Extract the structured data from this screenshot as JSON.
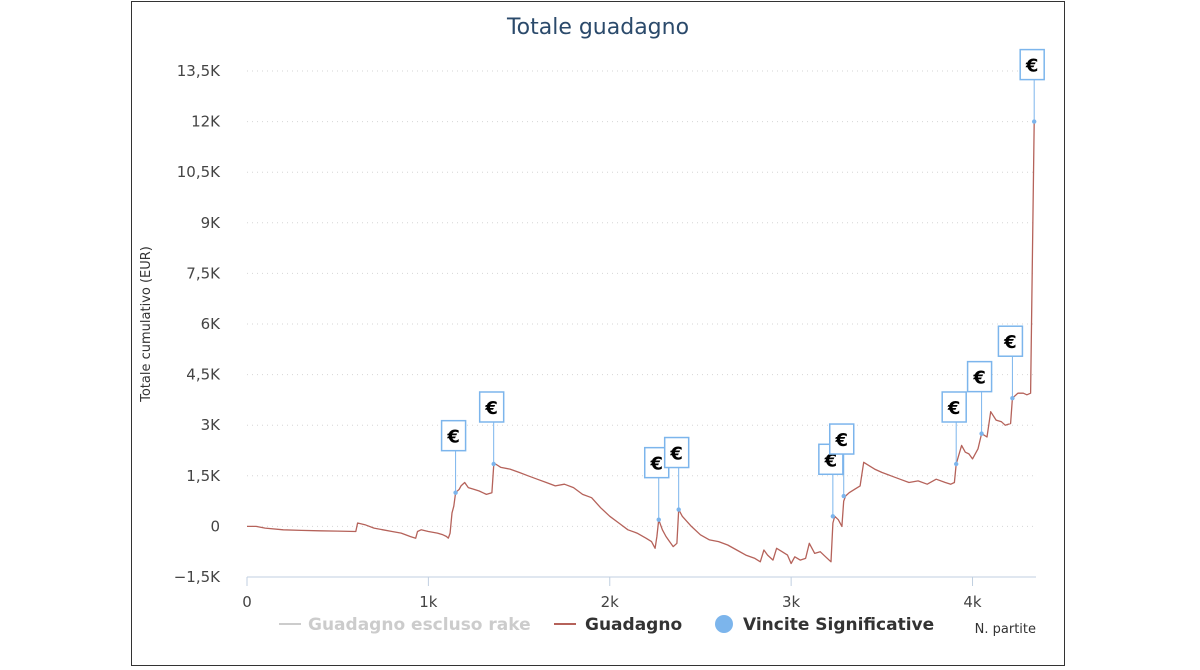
{
  "chart_data": {
    "type": "line",
    "title": "Totale guadagno",
    "xlabel": "N. partite",
    "ylabel": "Totale cumulativo (EUR)",
    "xlim": [
      0,
      4350
    ],
    "ylim": [
      -1500,
      13500
    ],
    "x_ticks": [
      {
        "value": 0,
        "label": "0"
      },
      {
        "value": 1000,
        "label": "1k"
      },
      {
        "value": 2000,
        "label": "2k"
      },
      {
        "value": 3000,
        "label": "3k"
      },
      {
        "value": 4000,
        "label": "4k"
      }
    ],
    "y_ticks": [
      {
        "value": -1500,
        "label": "−1,5K"
      },
      {
        "value": 0,
        "label": "0"
      },
      {
        "value": 1500,
        "label": "1,5K"
      },
      {
        "value": 3000,
        "label": "3K"
      },
      {
        "value": 4500,
        "label": "4,5K"
      },
      {
        "value": 6000,
        "label": "6K"
      },
      {
        "value": 7500,
        "label": "7,5K"
      },
      {
        "value": 9000,
        "label": "9K"
      },
      {
        "value": 10500,
        "label": "10,5K"
      },
      {
        "value": 12000,
        "label": "12K"
      },
      {
        "value": 13500,
        "label": "13,5K"
      }
    ],
    "grid": "horizontal-dotted",
    "legend_position": "bottom",
    "series": [
      {
        "name": "Guadagno escluso rake",
        "color": "#cccccc",
        "visible": false,
        "values": []
      },
      {
        "name": "Guadagno",
        "color": "#b5625a",
        "visible": true,
        "points": [
          [
            0,
            0
          ],
          [
            50,
            0
          ],
          [
            100,
            -50
          ],
          [
            200,
            -100
          ],
          [
            300,
            -120
          ],
          [
            400,
            -130
          ],
          [
            500,
            -140
          ],
          [
            600,
            -150
          ],
          [
            610,
            100
          ],
          [
            650,
            50
          ],
          [
            700,
            -50
          ],
          [
            750,
            -100
          ],
          [
            800,
            -150
          ],
          [
            850,
            -200
          ],
          [
            900,
            -300
          ],
          [
            930,
            -350
          ],
          [
            940,
            -150
          ],
          [
            960,
            -100
          ],
          [
            1000,
            -150
          ],
          [
            1050,
            -200
          ],
          [
            1080,
            -250
          ],
          [
            1100,
            -300
          ],
          [
            1110,
            -350
          ],
          [
            1120,
            -200
          ],
          [
            1130,
            400
          ],
          [
            1140,
            600
          ],
          [
            1150,
            1000
          ],
          [
            1170,
            1100
          ],
          [
            1180,
            1200
          ],
          [
            1200,
            1300
          ],
          [
            1220,
            1150
          ],
          [
            1250,
            1100
          ],
          [
            1280,
            1050
          ],
          [
            1300,
            1000
          ],
          [
            1320,
            950
          ],
          [
            1350,
            1000
          ],
          [
            1360,
            1800
          ],
          [
            1370,
            1850
          ],
          [
            1400,
            1750
          ],
          [
            1450,
            1700
          ],
          [
            1500,
            1600
          ],
          [
            1550,
            1500
          ],
          [
            1600,
            1400
          ],
          [
            1650,
            1300
          ],
          [
            1700,
            1200
          ],
          [
            1750,
            1250
          ],
          [
            1800,
            1150
          ],
          [
            1850,
            950
          ],
          [
            1900,
            850
          ],
          [
            1950,
            550
          ],
          [
            2000,
            300
          ],
          [
            2050,
            100
          ],
          [
            2100,
            -100
          ],
          [
            2150,
            -200
          ],
          [
            2200,
            -350
          ],
          [
            2230,
            -450
          ],
          [
            2250,
            -650
          ],
          [
            2260,
            -300
          ],
          [
            2270,
            200
          ],
          [
            2290,
            -100
          ],
          [
            2310,
            -300
          ],
          [
            2330,
            -450
          ],
          [
            2350,
            -600
          ],
          [
            2370,
            -500
          ],
          [
            2380,
            500
          ],
          [
            2400,
            300
          ],
          [
            2450,
            0
          ],
          [
            2500,
            -250
          ],
          [
            2550,
            -400
          ],
          [
            2600,
            -450
          ],
          [
            2650,
            -550
          ],
          [
            2700,
            -700
          ],
          [
            2750,
            -850
          ],
          [
            2800,
            -950
          ],
          [
            2830,
            -1050
          ],
          [
            2850,
            -700
          ],
          [
            2870,
            -850
          ],
          [
            2900,
            -1000
          ],
          [
            2920,
            -650
          ],
          [
            2950,
            -750
          ],
          [
            2980,
            -850
          ],
          [
            3000,
            -1100
          ],
          [
            3020,
            -900
          ],
          [
            3050,
            -1000
          ],
          [
            3080,
            -950
          ],
          [
            3100,
            -500
          ],
          [
            3130,
            -800
          ],
          [
            3160,
            -750
          ],
          [
            3190,
            -900
          ],
          [
            3220,
            -1050
          ],
          [
            3230,
            100
          ],
          [
            3240,
            300
          ],
          [
            3260,
            200
          ],
          [
            3280,
            0
          ],
          [
            3290,
            750
          ],
          [
            3300,
            900
          ],
          [
            3320,
            1000
          ],
          [
            3350,
            1100
          ],
          [
            3380,
            1200
          ],
          [
            3400,
            1900
          ],
          [
            3430,
            1800
          ],
          [
            3460,
            1700
          ],
          [
            3500,
            1600
          ],
          [
            3550,
            1500
          ],
          [
            3600,
            1400
          ],
          [
            3650,
            1300
          ],
          [
            3700,
            1350
          ],
          [
            3750,
            1250
          ],
          [
            3800,
            1400
          ],
          [
            3850,
            1300
          ],
          [
            3880,
            1250
          ],
          [
            3900,
            1300
          ],
          [
            3910,
            1850
          ],
          [
            3940,
            2400
          ],
          [
            3960,
            2200
          ],
          [
            3980,
            2150
          ],
          [
            4000,
            2000
          ],
          [
            4030,
            2300
          ],
          [
            4050,
            2750
          ],
          [
            4080,
            2650
          ],
          [
            4100,
            3400
          ],
          [
            4130,
            3150
          ],
          [
            4160,
            3100
          ],
          [
            4180,
            3000
          ],
          [
            4210,
            3050
          ],
          [
            4220,
            3800
          ],
          [
            4250,
            3950
          ],
          [
            4280,
            3950
          ],
          [
            4300,
            3900
          ],
          [
            4320,
            3950
          ],
          [
            4340,
            12000
          ]
        ]
      },
      {
        "name": "Vincite Significative",
        "color": "#7cb5ec",
        "visible": true,
        "type": "flags",
        "flag_label": "€",
        "points": [
          [
            1150,
            1000
          ],
          [
            1360,
            1850
          ],
          [
            2270,
            200
          ],
          [
            2380,
            500
          ],
          [
            3230,
            300
          ],
          [
            3290,
            900
          ],
          [
            3910,
            1850
          ],
          [
            4050,
            2750
          ],
          [
            4220,
            3800
          ],
          [
            4340,
            12000
          ]
        ]
      }
    ]
  }
}
